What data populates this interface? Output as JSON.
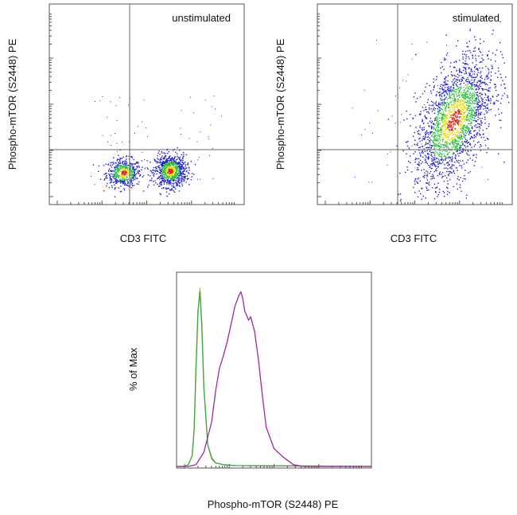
{
  "chart_data": [
    {
      "type": "scatter",
      "title": "unstimulated",
      "xlabel": "CD3 FITC",
      "ylabel": "Phospho-mTOR (S2448) PE",
      "xscale": "log",
      "yscale": "log",
      "quadrant_gates": true,
      "legend": "none",
      "density_clusters": [
        {
          "name": "",
          "cx": 0.38,
          "cy": 0.16,
          "sx": 0.045,
          "sy": 0.035,
          "n": 520
        },
        {
          "name": "",
          "cx": 0.62,
          "cy": 0.17,
          "sx": 0.04,
          "sy": 0.04,
          "n": 900
        }
      ],
      "colors": {
        "low": "#1f1fd6",
        "mid": "#2fbf3f",
        "high": "#e8e020",
        "peak": "#d62a1a"
      }
    },
    {
      "type": "scatter",
      "title": "stimulated",
      "xlabel": "CD3 FITC",
      "ylabel": "Phospho-mTOR (S2448) PE",
      "xscale": "log",
      "yscale": "log",
      "quadrant_gates": true,
      "legend": "none",
      "density_clusters": [
        {
          "name": "",
          "cx": 0.7,
          "cy": 0.42,
          "sx": 0.1,
          "sy": 0.14,
          "n": 2200,
          "tilt": 0.85
        }
      ],
      "colors": {
        "low": "#1f1fd6",
        "mid": "#2fbf3f",
        "high": "#e8e020",
        "peak": "#d62a1a"
      }
    },
    {
      "type": "line",
      "title": "",
      "xlabel": "Phospho-mTOR (S2448) PE",
      "ylabel": "% of Max",
      "xscale": "log",
      "legend": "none",
      "series": [
        {
          "name": "",
          "color": "#e8a020",
          "x": [
            0.0,
            0.04,
            0.06,
            0.08,
            0.09,
            0.1,
            0.11,
            0.12,
            0.13,
            0.14,
            0.16,
            0.18,
            0.2,
            0.24,
            0.3,
            1.0
          ],
          "y": [
            0,
            0,
            0.01,
            0.06,
            0.2,
            0.55,
            0.85,
            1.0,
            0.8,
            0.45,
            0.12,
            0.04,
            0.02,
            0.01,
            0.005,
            0
          ]
        },
        {
          "name": "",
          "color": "#3aa84a",
          "x": [
            0.0,
            0.04,
            0.06,
            0.08,
            0.09,
            0.1,
            0.11,
            0.12,
            0.13,
            0.14,
            0.16,
            0.18,
            0.2,
            0.24,
            0.3,
            1.0
          ],
          "y": [
            0,
            0,
            0.01,
            0.06,
            0.21,
            0.57,
            0.87,
            0.98,
            0.78,
            0.44,
            0.12,
            0.05,
            0.02,
            0.01,
            0.005,
            0
          ]
        },
        {
          "name": "",
          "color": "#9a2aa0",
          "x": [
            0.0,
            0.06,
            0.1,
            0.14,
            0.18,
            0.2,
            0.22,
            0.24,
            0.26,
            0.28,
            0.3,
            0.32,
            0.33,
            0.34,
            0.35,
            0.37,
            0.38,
            0.4,
            0.42,
            0.44,
            0.46,
            0.5,
            0.55,
            0.6,
            0.65,
            1.0
          ],
          "y": [
            0,
            0,
            0.01,
            0.08,
            0.25,
            0.42,
            0.55,
            0.62,
            0.7,
            0.8,
            0.9,
            0.96,
            0.98,
            0.94,
            0.87,
            0.82,
            0.84,
            0.76,
            0.6,
            0.4,
            0.22,
            0.1,
            0.05,
            0.01,
            0.0,
            0
          ]
        }
      ]
    }
  ]
}
